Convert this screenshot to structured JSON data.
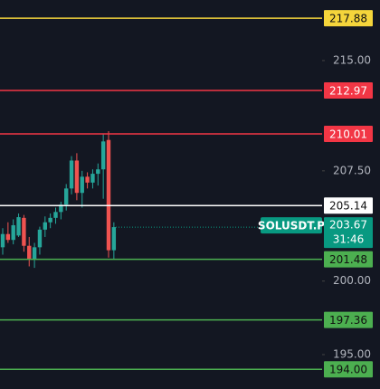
{
  "chart_data": {
    "type": "candlestick",
    "symbol": "SOLUSDT.P",
    "countdown": "31:46",
    "ylim": [
      192.66,
      219.12
    ],
    "yticks": [
      {
        "value": 215,
        "label": "215.00"
      },
      {
        "value": 207.5,
        "label": "207.50"
      },
      {
        "value": 200,
        "label": "200.00"
      },
      {
        "value": 195,
        "label": "195.00"
      }
    ],
    "up_color": "#26a69a",
    "down_color": "#ef5350",
    "open": [
      202.3,
      203.2,
      202.8,
      203.1,
      204.3,
      202.4,
      201.5,
      202.3,
      203.5,
      204.0,
      204.3,
      204.7,
      205.2,
      206.3,
      208.2,
      206.0,
      207.1,
      206.7,
      207.3,
      207.6,
      209.6,
      202.1
    ],
    "high": [
      203.6,
      204.0,
      204.2,
      204.6,
      204.5,
      203.0,
      202.6,
      203.7,
      204.4,
      204.6,
      205.0,
      205.4,
      206.6,
      208.5,
      208.7,
      207.5,
      207.4,
      207.6,
      208.0,
      210.0,
      210.2,
      204.0
    ],
    "low": [
      201.8,
      202.6,
      202.5,
      203.0,
      202.0,
      201.0,
      200.9,
      201.8,
      203.0,
      203.6,
      203.9,
      204.2,
      204.8,
      205.9,
      205.5,
      205.0,
      206.3,
      206.3,
      206.5,
      205.6,
      201.6,
      201.5
    ],
    "close": [
      203.2,
      202.8,
      203.8,
      204.35,
      202.4,
      201.5,
      202.3,
      203.5,
      204.0,
      204.3,
      204.7,
      205.2,
      206.3,
      208.2,
      206.0,
      207.1,
      206.7,
      207.3,
      207.6,
      209.5,
      202.1,
      203.67
    ],
    "last": {
      "value": 203.67,
      "color": "#089981"
    },
    "levels": [
      {
        "value": 217.88,
        "color": "#f5d53b",
        "text_color": "#111111"
      },
      {
        "value": 212.97,
        "color": "#f23645",
        "text_color": "#ffffff"
      },
      {
        "value": 210.01,
        "color": "#f23645",
        "text_color": "#ffffff"
      },
      {
        "value": 205.14,
        "color": "#ffffff",
        "text_color": "#111111"
      },
      {
        "value": 201.48,
        "color": "#4caf50",
        "text_color": "#111111"
      },
      {
        "value": 197.36,
        "color": "#4caf50",
        "text_color": "#111111"
      },
      {
        "value": 194,
        "label": "194.00",
        "color": "#4caf50",
        "text_color": "#111111"
      }
    ]
  }
}
